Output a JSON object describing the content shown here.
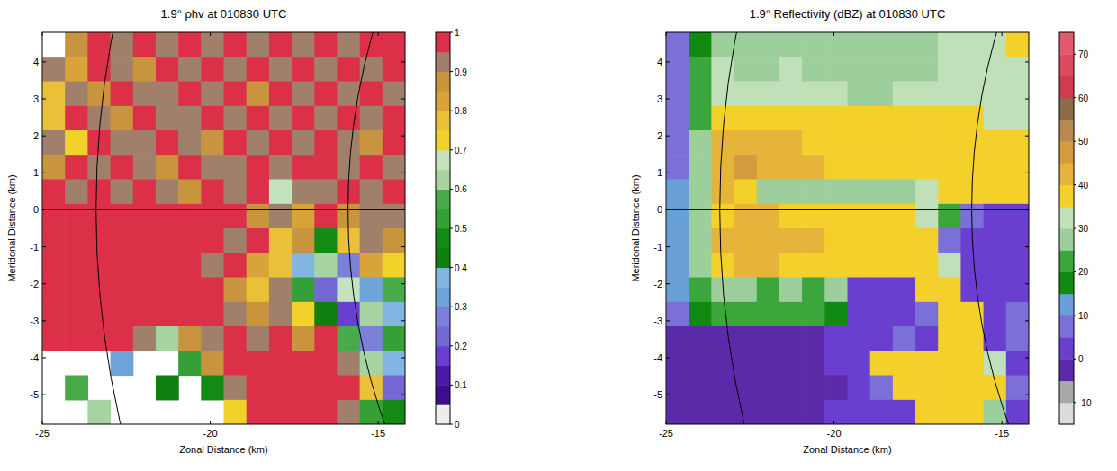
{
  "chart_data": [
    {
      "type": "heatmap",
      "title": "1.9° ρhv at 010830 UTC",
      "xlabel": "Zonal Distance (km)",
      "ylabel": "Meridonal Distance (km)",
      "xlim": [
        -25,
        -14.2
      ],
      "ylim": [
        -5.8,
        4.8
      ],
      "xticks": [
        -25,
        -20,
        -15
      ],
      "yticks": [
        -5,
        -4,
        -3,
        -2,
        -1,
        0,
        1,
        2,
        3,
        4
      ],
      "hlines": [
        0
      ],
      "range_rings": [
        23.4,
        15.9
      ],
      "x": [
        -24.66,
        -23.99,
        -23.31,
        -22.64,
        -21.96,
        -21.29,
        -20.61,
        -19.94,
        -19.26,
        -18.59,
        -17.91,
        -17.24,
        -16.56,
        -15.89,
        -15.21,
        -14.54
      ],
      "y": [
        4.47,
        3.81,
        3.14,
        2.48,
        1.82,
        1.16,
        0.49,
        -0.17,
        -0.83,
        -1.49,
        -2.16,
        -2.82,
        -3.48,
        -4.14,
        -4.81,
        -5.47
      ],
      "cells": [
        [
          null,
          0.85,
          0.95,
          0.9,
          0.97,
          0.93,
          0.98,
          0.92,
          0.96,
          0.9,
          0.97,
          0.94,
          0.98,
          0.92,
          0.97,
          0.95
        ],
        [
          0.9,
          0.8,
          0.96,
          0.92,
          0.88,
          0.97,
          0.93,
          0.98,
          0.9,
          0.96,
          0.92,
          0.98,
          0.93,
          0.97,
          0.9,
          0.96
        ],
        [
          0.75,
          0.92,
          0.88,
          0.97,
          0.93,
          0.9,
          0.98,
          0.94,
          0.97,
          0.88,
          0.95,
          0.92,
          0.97,
          0.93,
          0.98,
          0.92
        ],
        [
          0.78,
          0.95,
          0.92,
          0.86,
          0.97,
          0.94,
          0.9,
          0.97,
          0.92,
          0.96,
          0.93,
          0.98,
          0.9,
          0.96,
          0.94,
          0.97
        ],
        [
          0.93,
          0.72,
          0.97,
          0.93,
          0.9,
          0.98,
          0.92,
          0.88,
          0.97,
          0.93,
          0.98,
          0.91,
          0.96,
          0.93,
          0.88,
          0.96
        ],
        [
          0.88,
          0.95,
          0.9,
          0.97,
          0.92,
          0.86,
          0.97,
          0.94,
          0.9,
          0.97,
          0.92,
          0.95,
          0.98,
          0.9,
          0.96,
          0.93
        ],
        [
          0.97,
          0.92,
          0.98,
          0.92,
          0.96,
          0.93,
          0.88,
          0.97,
          0.92,
          0.96,
          0.65,
          0.93,
          0.9,
          0.97,
          0.92,
          0.95
        ],
        [
          0.98,
          0.97,
          0.98,
          0.96,
          0.98,
          0.97,
          0.95,
          0.98,
          0.97,
          0.85,
          0.92,
          0.8,
          0.95,
          0.88,
          0.93,
          0.9
        ],
        [
          0.98,
          0.97,
          0.98,
          0.98,
          0.96,
          0.98,
          0.97,
          0.98,
          0.9,
          0.97,
          0.78,
          0.85,
          0.45,
          0.75,
          0.92,
          0.88
        ],
        [
          0.97,
          0.98,
          0.96,
          0.98,
          0.98,
          0.97,
          0.98,
          0.92,
          0.98,
          0.82,
          0.76,
          0.35,
          0.6,
          0.25,
          0.8,
          0.7
        ],
        [
          0.98,
          0.97,
          0.98,
          0.96,
          0.98,
          0.98,
          0.97,
          0.98,
          0.88,
          0.75,
          0.9,
          0.5,
          0.2,
          0.65,
          0.3,
          0.55
        ],
        [
          0.97,
          0.98,
          0.97,
          0.98,
          0.97,
          0.98,
          0.96,
          0.97,
          0.9,
          0.85,
          0.93,
          0.7,
          0.4,
          0.15,
          0.6,
          0.35
        ],
        [
          0.96,
          0.98,
          0.95,
          0.97,
          0.92,
          0.6,
          0.85,
          0.93,
          0.95,
          0.9,
          0.97,
          0.88,
          0.97,
          0.55,
          0.25,
          0.5
        ],
        [
          null,
          null,
          null,
          0.3,
          null,
          null,
          0.5,
          0.85,
          0.97,
          0.98,
          0.96,
          0.98,
          0.97,
          0.93,
          0.6,
          0.35
        ],
        [
          null,
          0.55,
          null,
          null,
          null,
          0.4,
          null,
          0.45,
          0.92,
          0.97,
          0.98,
          0.96,
          0.98,
          0.97,
          0.75,
          0.2
        ],
        [
          null,
          null,
          0.6,
          null,
          null,
          null,
          null,
          null,
          0.7,
          0.98,
          0.97,
          0.98,
          0.96,
          0.9,
          0.5,
          0.45
        ]
      ],
      "colorbar": {
        "range": [
          0,
          1
        ],
        "ticks": [
          0,
          0.1,
          0.2,
          0.3,
          0.4,
          0.5,
          0.6,
          0.7,
          0.8,
          0.9,
          1
        ],
        "colors": [
          "#ededed",
          "#3b0f8c",
          "#4a1aa6",
          "#6a3fd0",
          "#7468d4",
          "#7b80d8",
          "#6ea4d8",
          "#82b6e2",
          "#0f7f0f",
          "#138a13",
          "#35a035",
          "#48aa48",
          "#a6d3a0",
          "#c4e2be",
          "#f2d22a",
          "#eac038",
          "#d8a43a",
          "#c8943e",
          "#a0806a",
          "#dc3048"
        ]
      }
    },
    {
      "type": "heatmap",
      "title": "1.9° Reflectivity (dBZ) at 010830 UTC",
      "xlabel": "Zonal Distance (km)",
      "ylabel": "Meridonal Distance (km)",
      "xlim": [
        -25,
        -14.2
      ],
      "ylim": [
        -5.8,
        4.8
      ],
      "xticks": [
        -25,
        -20,
        -15
      ],
      "yticks": [
        -5,
        -4,
        -3,
        -2,
        -1,
        0,
        1,
        2,
        3,
        4
      ],
      "hlines": [
        0
      ],
      "range_rings": [
        23.4,
        15.9
      ],
      "x": [
        -24.66,
        -23.99,
        -23.31,
        -22.64,
        -21.96,
        -21.29,
        -20.61,
        -19.94,
        -19.26,
        -18.59,
        -17.91,
        -17.24,
        -16.56,
        -15.89,
        -15.21,
        -14.54
      ],
      "y": [
        4.47,
        3.81,
        3.14,
        2.48,
        1.82,
        1.16,
        0.49,
        -0.17,
        -0.83,
        -1.49,
        -2.16,
        -2.82,
        -3.48,
        -4.14,
        -4.81,
        -5.47
      ],
      "cells": [
        [
          5,
          18,
          28,
          28,
          27,
          27,
          27,
          26,
          27,
          28,
          28,
          28,
          30,
          30,
          32,
          36
        ],
        [
          6,
          20,
          30,
          28,
          27,
          30,
          28,
          27,
          28,
          27,
          28,
          29,
          30,
          31,
          32,
          33
        ],
        [
          7,
          22,
          30,
          30,
          31,
          32,
          30,
          30,
          28,
          29,
          30,
          31,
          30,
          30,
          31,
          32
        ],
        [
          8,
          22,
          36,
          37,
          37,
          36,
          36,
          36,
          37,
          36,
          36,
          37,
          36,
          36,
          33,
          31
        ],
        [
          8,
          25,
          40,
          44,
          42,
          40,
          38,
          38,
          38,
          38,
          37,
          37,
          37,
          37,
          36,
          35
        ],
        [
          9,
          27,
          42,
          46,
          44,
          42,
          40,
          38,
          37,
          37,
          38,
          37,
          36,
          36,
          36,
          36
        ],
        [
          10,
          26,
          40,
          38,
          28,
          27,
          27,
          28,
          29,
          29,
          28,
          30,
          36,
          37,
          37,
          37
        ],
        [
          12,
          28,
          38,
          40,
          40,
          38,
          37,
          37,
          36,
          38,
          37,
          33,
          22,
          5,
          3,
          2
        ],
        [
          12,
          28,
          40,
          42,
          44,
          42,
          40,
          38,
          37,
          38,
          37,
          36,
          5,
          2,
          0,
          2
        ],
        [
          12,
          25,
          38,
          40,
          40,
          38,
          37,
          37,
          36,
          35,
          36,
          38,
          30,
          2,
          0,
          3
        ],
        [
          10,
          22,
          26,
          25,
          24,
          25,
          24,
          25,
          3,
          2,
          2,
          36,
          37,
          2,
          0,
          4
        ],
        [
          8,
          18,
          22,
          22,
          20,
          22,
          20,
          15,
          2,
          1,
          2,
          5,
          37,
          35,
          3,
          5
        ],
        [
          -2,
          -2,
          -1,
          -1,
          -1,
          -2,
          -1,
          0,
          2,
          3,
          5,
          4,
          36,
          38,
          4,
          5
        ],
        [
          -2,
          -1,
          -2,
          -1,
          -2,
          -1,
          -1,
          0,
          3,
          35,
          36,
          38,
          37,
          38,
          30,
          4
        ],
        [
          -1,
          -2,
          -1,
          -2,
          -1,
          -1,
          -2,
          -1,
          2,
          5,
          36,
          37,
          36,
          36,
          37,
          5
        ],
        [
          -2,
          -1,
          -1,
          -2,
          -1,
          -2,
          -1,
          0,
          2,
          3,
          4,
          35,
          36,
          37,
          25,
          3
        ]
      ],
      "colorbar": {
        "range": [
          -15,
          75
        ],
        "ticks": [
          -10,
          0,
          10,
          20,
          30,
          40,
          50,
          60,
          70
        ],
        "colors": [
          "#dcdcdc",
          "#a8a8a8",
          "#5a2aa8",
          "#6a3fd0",
          "#7b6fd8",
          "#6aa0d8",
          "#118a11",
          "#3ba63b",
          "#9ccf9c",
          "#bfe0b8",
          "#f3d02a",
          "#e6b43a",
          "#d59a3c",
          "#b88a50",
          "#8c6a4c",
          "#cf3c52",
          "#dc4a60",
          "#e05a70"
        ]
      }
    }
  ]
}
